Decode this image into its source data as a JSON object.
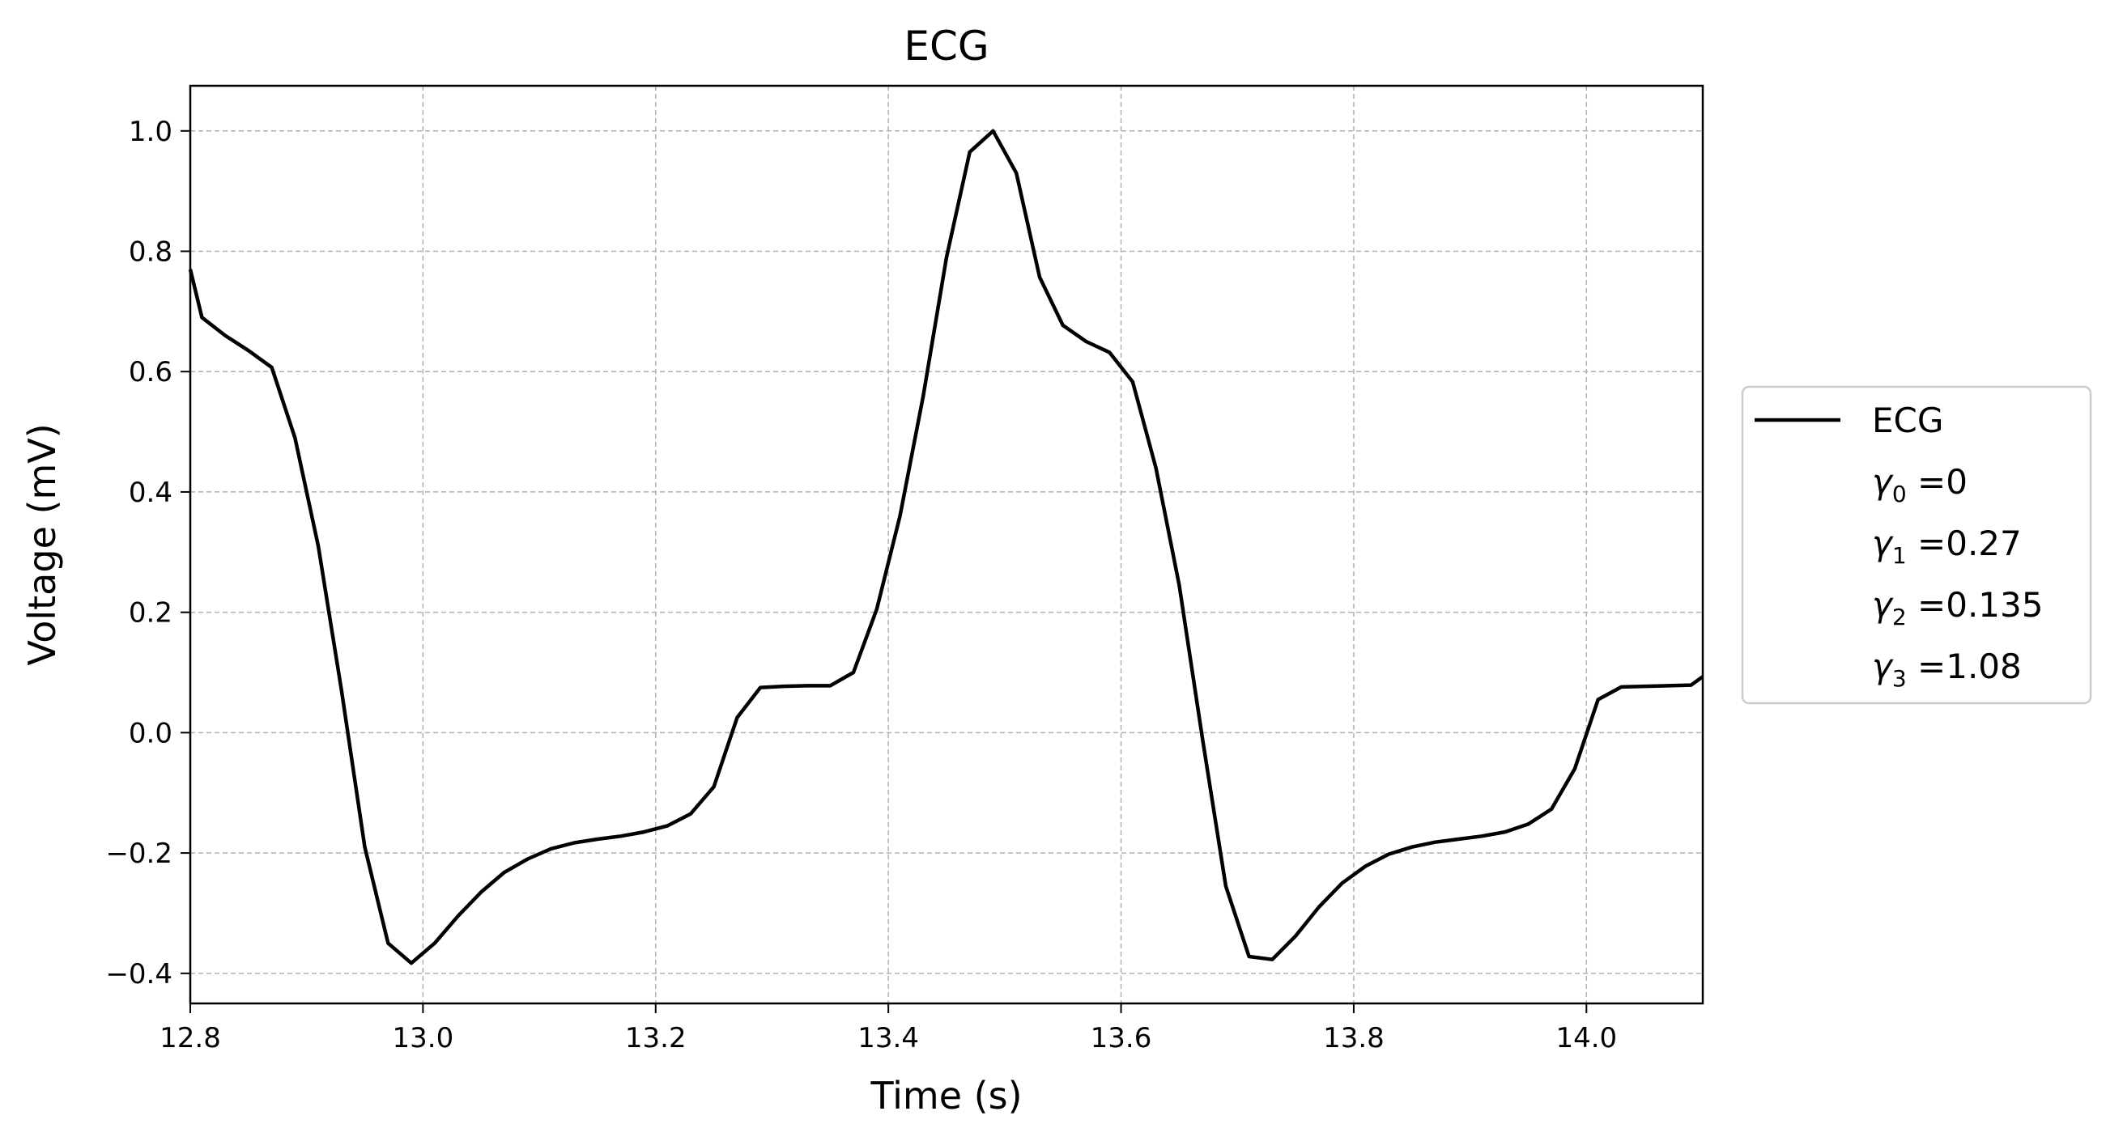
{
  "chart_data": {
    "type": "line",
    "title": "ECG",
    "xlabel": "Time (s)",
    "ylabel": "Voltage (mV)",
    "xlim": [
      12.8,
      14.1
    ],
    "ylim": [
      -0.45,
      1.075
    ],
    "xticks": [
      12.8,
      13.0,
      13.2,
      13.4,
      13.6,
      13.8,
      14.0
    ],
    "xtick_labels": [
      "12.8",
      "13.0",
      "13.2",
      "13.4",
      "13.6",
      "13.8",
      "14.0"
    ],
    "yticks": [
      -0.4,
      -0.2,
      0.0,
      0.2,
      0.4,
      0.6,
      0.8,
      1.0
    ],
    "ytick_labels": [
      "−0.4",
      "−0.2",
      "0.0",
      "0.2",
      "0.4",
      "0.6",
      "0.8",
      "1.0"
    ],
    "grid": true,
    "legend_position": "right-outside",
    "legend": {
      "entries": [
        "ECG"
      ],
      "params": [
        {
          "sub": "0",
          "value": "=0"
        },
        {
          "sub": "1",
          "value": "=0.27"
        },
        {
          "sub": "2",
          "value": "=0.135"
        },
        {
          "sub": "3",
          "value": "=1.08"
        }
      ],
      "symbol": "γ"
    },
    "series": [
      {
        "name": "ECG",
        "color": "#000000",
        "x": [
          12.8,
          12.81,
          12.83,
          12.85,
          12.87,
          12.89,
          12.91,
          12.93,
          12.95,
          12.97,
          12.99,
          13.01,
          13.03,
          13.05,
          13.07,
          13.09,
          13.11,
          13.13,
          13.15,
          13.17,
          13.19,
          13.21,
          13.23,
          13.25,
          13.27,
          13.29,
          13.31,
          13.33,
          13.35,
          13.37,
          13.39,
          13.41,
          13.43,
          13.45,
          13.47,
          13.49,
          13.51,
          13.53,
          13.55,
          13.57,
          13.59,
          13.61,
          13.63,
          13.65,
          13.67,
          13.69,
          13.71,
          13.73,
          13.75,
          13.77,
          13.79,
          13.81,
          13.83,
          13.85,
          13.87,
          13.89,
          13.91,
          13.93,
          13.95,
          13.97,
          13.99,
          14.01,
          14.03,
          14.05,
          14.07,
          14.09,
          14.1
        ],
        "y": [
          0.77,
          0.69,
          0.66,
          0.635,
          0.607,
          0.49,
          0.31,
          0.07,
          -0.19,
          -0.35,
          -0.383,
          -0.35,
          -0.305,
          -0.265,
          -0.232,
          -0.21,
          -0.193,
          -0.183,
          -0.177,
          -0.172,
          -0.165,
          -0.155,
          -0.135,
          -0.09,
          0.025,
          0.075,
          0.077,
          0.078,
          0.078,
          0.1,
          0.205,
          0.36,
          0.56,
          0.79,
          0.965,
          1.0,
          0.93,
          0.757,
          0.677,
          0.65,
          0.632,
          0.583,
          0.44,
          0.245,
          -0.01,
          -0.255,
          -0.372,
          -0.377,
          -0.338,
          -0.29,
          -0.25,
          -0.222,
          -0.202,
          -0.19,
          -0.182,
          -0.177,
          -0.172,
          -0.165,
          -0.152,
          -0.127,
          -0.06,
          0.055,
          0.076,
          0.077,
          0.078,
          0.079,
          0.093
        ]
      }
    ]
  }
}
